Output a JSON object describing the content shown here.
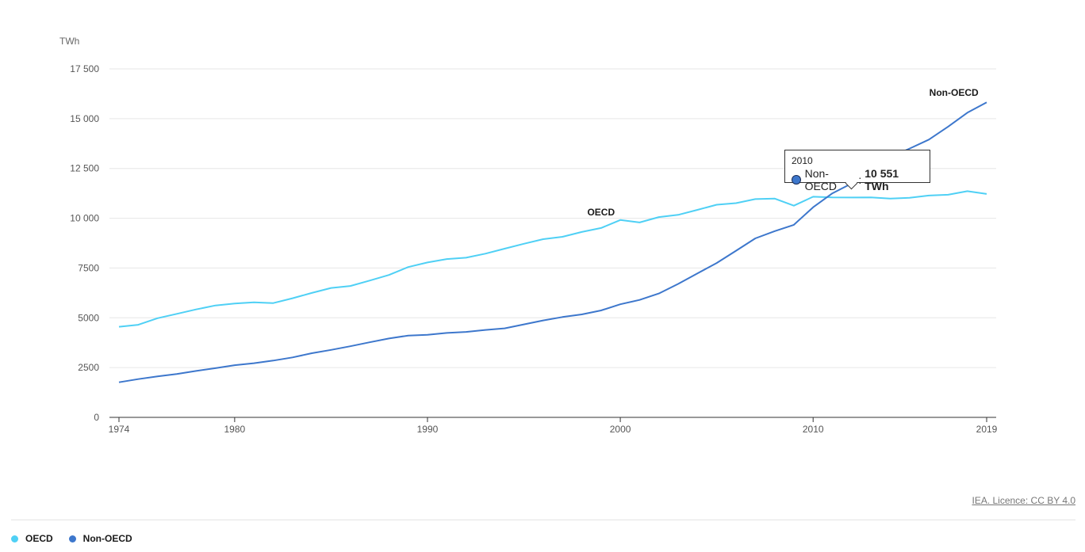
{
  "chart_data": {
    "type": "line",
    "ylabel": "TWh",
    "ylim": [
      0,
      17500
    ],
    "yticks": [
      0,
      2500,
      5000,
      7500,
      10000,
      12500,
      15000,
      17500
    ],
    "ytick_labels": [
      "0",
      "2500",
      "5000",
      "7500",
      "10 000",
      "12 500",
      "15 000",
      "17 500"
    ],
    "xlim": [
      1974,
      2019
    ],
    "xticks": [
      1974,
      1980,
      1990,
      2000,
      2010,
      2019
    ],
    "xtick_labels": [
      "1974",
      "1980",
      "1990",
      "2000",
      "2010",
      "2019"
    ],
    "grid": true,
    "x": [
      1974,
      1975,
      1976,
      1977,
      1978,
      1979,
      1980,
      1981,
      1982,
      1983,
      1984,
      1985,
      1986,
      1987,
      1988,
      1989,
      1990,
      1991,
      1992,
      1993,
      1994,
      1995,
      1996,
      1997,
      1998,
      1999,
      2000,
      2001,
      2002,
      2003,
      2004,
      2005,
      2006,
      2007,
      2008,
      2009,
      2010,
      2011,
      2012,
      2013,
      2014,
      2015,
      2016,
      2017,
      2018,
      2019
    ],
    "series": [
      {
        "name": "OECD",
        "color": "#4fd0f5",
        "values": [
          4550,
          4650,
          4980,
          5200,
          5420,
          5620,
          5720,
          5780,
          5740,
          5980,
          6250,
          6500,
          6600,
          6870,
          7150,
          7550,
          7780,
          7950,
          8020,
          8220,
          8470,
          8720,
          8950,
          9070,
          9310,
          9510,
          9910,
          9790,
          10060,
          10170,
          10420,
          10680,
          10760,
          10960,
          10990,
          10630,
          11080,
          11050,
          11040,
          11050,
          10990,
          11030,
          11140,
          11180,
          11360,
          11220
        ]
      },
      {
        "name": "Non-OECD",
        "color": "#3d77cc",
        "values": [
          1760,
          1920,
          2060,
          2180,
          2330,
          2470,
          2620,
          2720,
          2850,
          3010,
          3220,
          3390,
          3570,
          3770,
          3960,
          4110,
          4150,
          4240,
          4290,
          4390,
          4470,
          4670,
          4870,
          5040,
          5170,
          5370,
          5680,
          5900,
          6220,
          6700,
          7230,
          7750,
          8370,
          8990,
          9350,
          9670,
          10551,
          11250,
          11750,
          12500,
          13050,
          13500,
          13950,
          14600,
          15300,
          15820
        ]
      }
    ],
    "annotations": [
      {
        "text": "OECD",
        "x": 1999,
        "y": 10150
      },
      {
        "text": "Non-OECD",
        "x": 2017.3,
        "y": 16150
      }
    ],
    "tooltip": {
      "year": "2010",
      "series": "Non-OECD",
      "value": "10 551 TWh",
      "dot_color": "#3d77cc"
    },
    "legend_position": "bottom-left"
  },
  "source_link": "IEA. Licence: CC BY 4.0",
  "legend": [
    {
      "label": "OECD",
      "color": "#4fd0f5"
    },
    {
      "label": "Non-OECD",
      "color": "#3d77cc"
    }
  ]
}
